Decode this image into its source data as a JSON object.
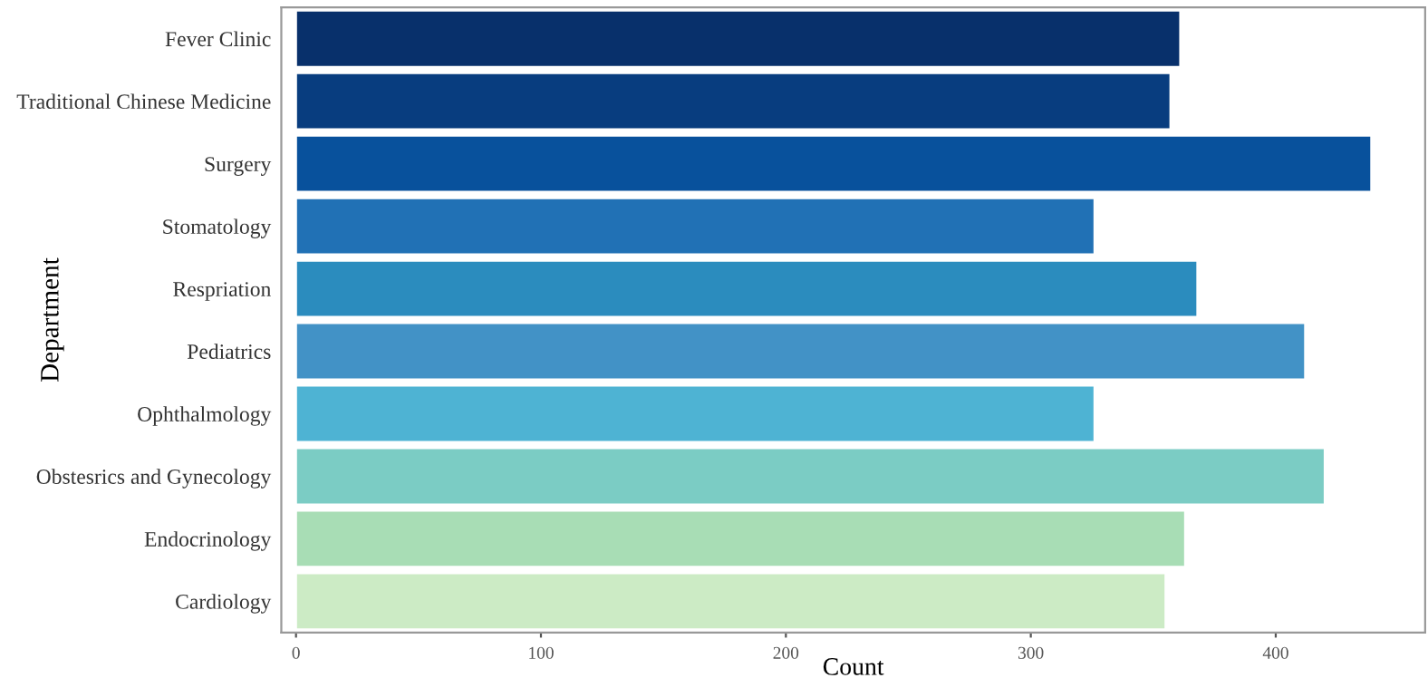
{
  "chart_data": {
    "type": "bar",
    "orientation": "horizontal",
    "xlabel": "Count",
    "ylabel": "Department",
    "categories": [
      "Fever Clinic",
      "Traditional Chinese Medicine",
      "Surgery",
      "Stomatology",
      "Respriation",
      "Pediatrics",
      "Ophthalmology",
      "Obstesrics and Gynecology",
      "Endocrinology",
      "Cardiology"
    ],
    "values": [
      361,
      357,
      439,
      326,
      368,
      412,
      326,
      420,
      363,
      355
    ],
    "colors": [
      "#08306b",
      "#083d7f",
      "#08519c",
      "#2171b5",
      "#2b8cbe",
      "#4292c6",
      "#4eb3d3",
      "#7bccc4",
      "#a8ddb5",
      "#ccebc5"
    ],
    "xlim": [
      -6,
      461
    ],
    "xticks": [
      0,
      100,
      200,
      300,
      400
    ],
    "grid": false
  }
}
